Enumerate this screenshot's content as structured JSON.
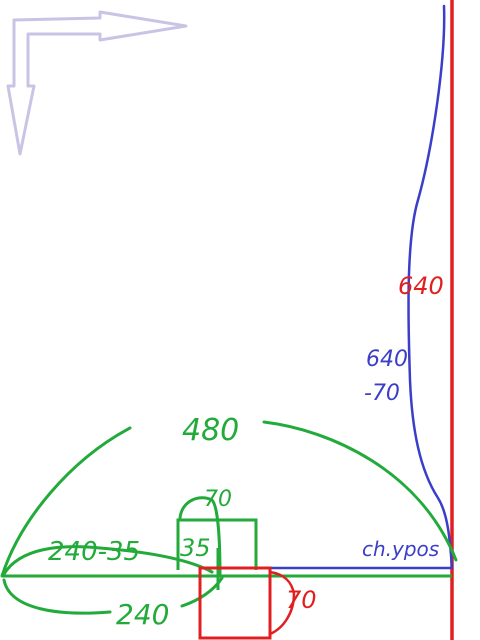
{
  "colors": {
    "background": "#ffffff",
    "axis_arrows": "#c8c4e6",
    "green": "#22aa3a",
    "red": "#e02020",
    "blue": "#3a3ec8"
  },
  "labels": {
    "total_width": "480",
    "left_offset": "240-35",
    "half_box": "35",
    "box_width": "70",
    "half_screen": "240",
    "box_height": "70",
    "screen_height": "640",
    "height_minus_box_line1": "640",
    "height_minus_box_line2": "-70",
    "ypos": "ch.ypos"
  }
}
